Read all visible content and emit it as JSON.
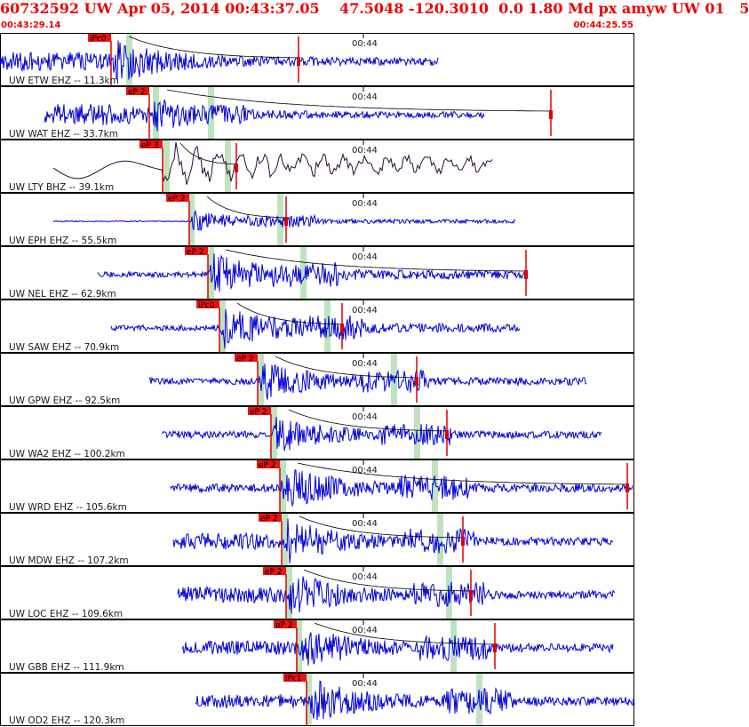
{
  "header": {
    "title": "60732592 UW Apr 05, 2014 00:43:37.05    47.5048 -120.3010  0.0 1.80 Md px amyw UW 01   5",
    "time_start": "00:43:29.14",
    "time_end": "00:44:25.55"
  },
  "minute_label": "00:44",
  "colors": {
    "trace": "#0000dd",
    "trace_broadband": "#2a0a3a",
    "pick_box": "#ee1111",
    "pick_line": "#dd0000",
    "window_band": "#bfe3bf",
    "panel_border": "#000000",
    "header_text": "#ee0000"
  },
  "panels": [
    {
      "label": "UW ETW EHZ -- 11.3km",
      "pick": "iPc0",
      "pick_t": 125,
      "trace_start": 0,
      "trace_end": 493,
      "amp": 26,
      "band1": 145,
      "band2": 0,
      "coda": 336,
      "broadband": false,
      "pre_amp": 0.4
    },
    {
      "label": "UW WAT EHZ -- 33.7km",
      "pick": "eP 2",
      "pick_t": 168,
      "trace_start": 50,
      "trace_end": 545,
      "amp": 20,
      "band1": 175,
      "band2": 237,
      "coda": 620,
      "broadband": false,
      "pre_amp": 0.6
    },
    {
      "label": "UW LTY BHZ -- 39.1km",
      "pick": "eP 3",
      "pick_t": 183,
      "trace_start": 60,
      "trace_end": 555,
      "amp": 26,
      "band1": 187,
      "band2": 256,
      "coda": 266,
      "broadband": true,
      "pre_amp": 0.8
    },
    {
      "label": "UW EPH EHZ -- 55.5km",
      "pick": "eP 2",
      "pick_t": 213,
      "trace_start": 60,
      "trace_end": 580,
      "amp": 12,
      "band1": 215,
      "band2": 315,
      "coda": 322,
      "broadband": false,
      "pre_amp": 0.05
    },
    {
      "label": "UW NEL EHZ -- 62.9km",
      "pick": "eP 2",
      "pick_t": 234,
      "trace_start": 110,
      "trace_end": 590,
      "amp": 26,
      "band1": 237,
      "band2": 341,
      "coda": 592,
      "broadband": false,
      "pre_amp": 0.12
    },
    {
      "label": "UW SAW EHZ -- 70.9km",
      "pick": "iPc0",
      "pick_t": 247,
      "trace_start": 125,
      "trace_end": 585,
      "amp": 26,
      "band1": 250,
      "band2": 368,
      "coda": 385,
      "broadband": false,
      "pre_amp": 0.12
    },
    {
      "label": "UW GPW EHZ -- 92.5km",
      "pick": "eP 2",
      "pick_t": 290,
      "trace_start": 168,
      "trace_end": 660,
      "amp": 24,
      "band1": 293,
      "band2": 443,
      "coda": 469,
      "broadband": false,
      "pre_amp": 0.15
    },
    {
      "label": "UW WA2 EHZ -- 100.2km",
      "pick": "eP 2",
      "pick_t": 305,
      "trace_start": 182,
      "trace_end": 677,
      "amp": 22,
      "band1": 308,
      "band2": 469,
      "coda": 503,
      "broadband": false,
      "pre_amp": 0.18
    },
    {
      "label": "UW WRD EHZ -- 105.6km",
      "pick": "eP 2",
      "pick_t": 315,
      "trace_start": 192,
      "trace_end": 712,
      "amp": 26,
      "band1": 318,
      "band2": 489,
      "coda": 706,
      "broadband": false,
      "pre_amp": 0.18
    },
    {
      "label": "UW MDW EHZ -- 107.2km",
      "pick": "eP 2",
      "pick_t": 317,
      "trace_start": 195,
      "trace_end": 690,
      "amp": 26,
      "band1": 320,
      "band2": 495,
      "coda": 521,
      "broadband": false,
      "pre_amp": 0.35
    },
    {
      "label": "UW LOC EHZ -- 109.6km",
      "pick": "eP 2",
      "pick_t": 322,
      "trace_start": 200,
      "trace_end": 692,
      "amp": 26,
      "band1": 325,
      "band2": 505,
      "coda": 530,
      "broadband": false,
      "pre_amp": 0.35
    },
    {
      "label": "UW GBB EHZ -- 111.9km",
      "pick": "eP 2",
      "pick_t": 334,
      "trace_start": 205,
      "trace_end": 690,
      "amp": 26,
      "band1": 336,
      "band2": 510,
      "coda": 557,
      "broadband": false,
      "pre_amp": 0.3
    },
    {
      "label": "UW OD2 EHZ -- 120.3km",
      "pick": "iPc1",
      "pick_t": 345,
      "trace_start": 220,
      "trace_end": 714,
      "amp": 26,
      "band1": 347,
      "band2": 539,
      "coda": 0,
      "broadband": false,
      "pre_amp": 0.3
    }
  ]
}
